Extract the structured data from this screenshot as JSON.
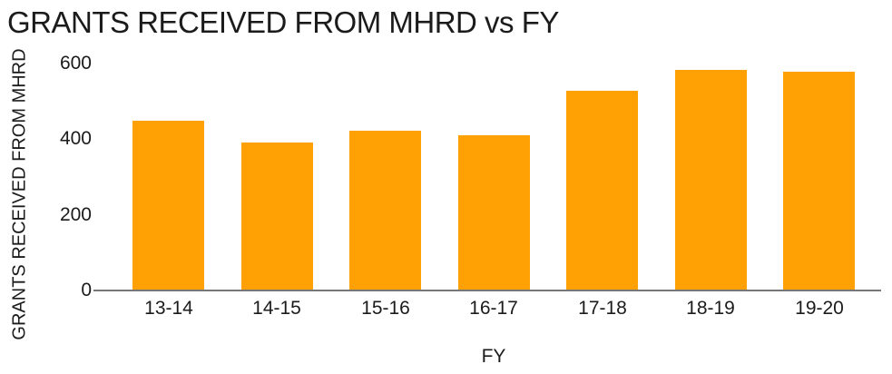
{
  "chart_data": {
    "type": "bar",
    "title": "GRANTS RECEIVED FROM MHRD vs FY",
    "xlabel": "FY",
    "ylabel": "GRANTS RECEIVED FROM MHRD",
    "categories": [
      "13-14",
      "14-15",
      "15-16",
      "16-17",
      "17-18",
      "18-19",
      "19-20"
    ],
    "values": [
      448,
      391,
      422,
      410,
      529,
      583,
      578
    ],
    "ylim": [
      0,
      600
    ],
    "yticks": [
      0,
      200,
      400,
      600
    ],
    "grid": false,
    "legend": false,
    "colors": {
      "bar": "#FFA005",
      "axis_line": "#777777",
      "text": "#1b1b1b",
      "background": "#ffffff"
    }
  }
}
